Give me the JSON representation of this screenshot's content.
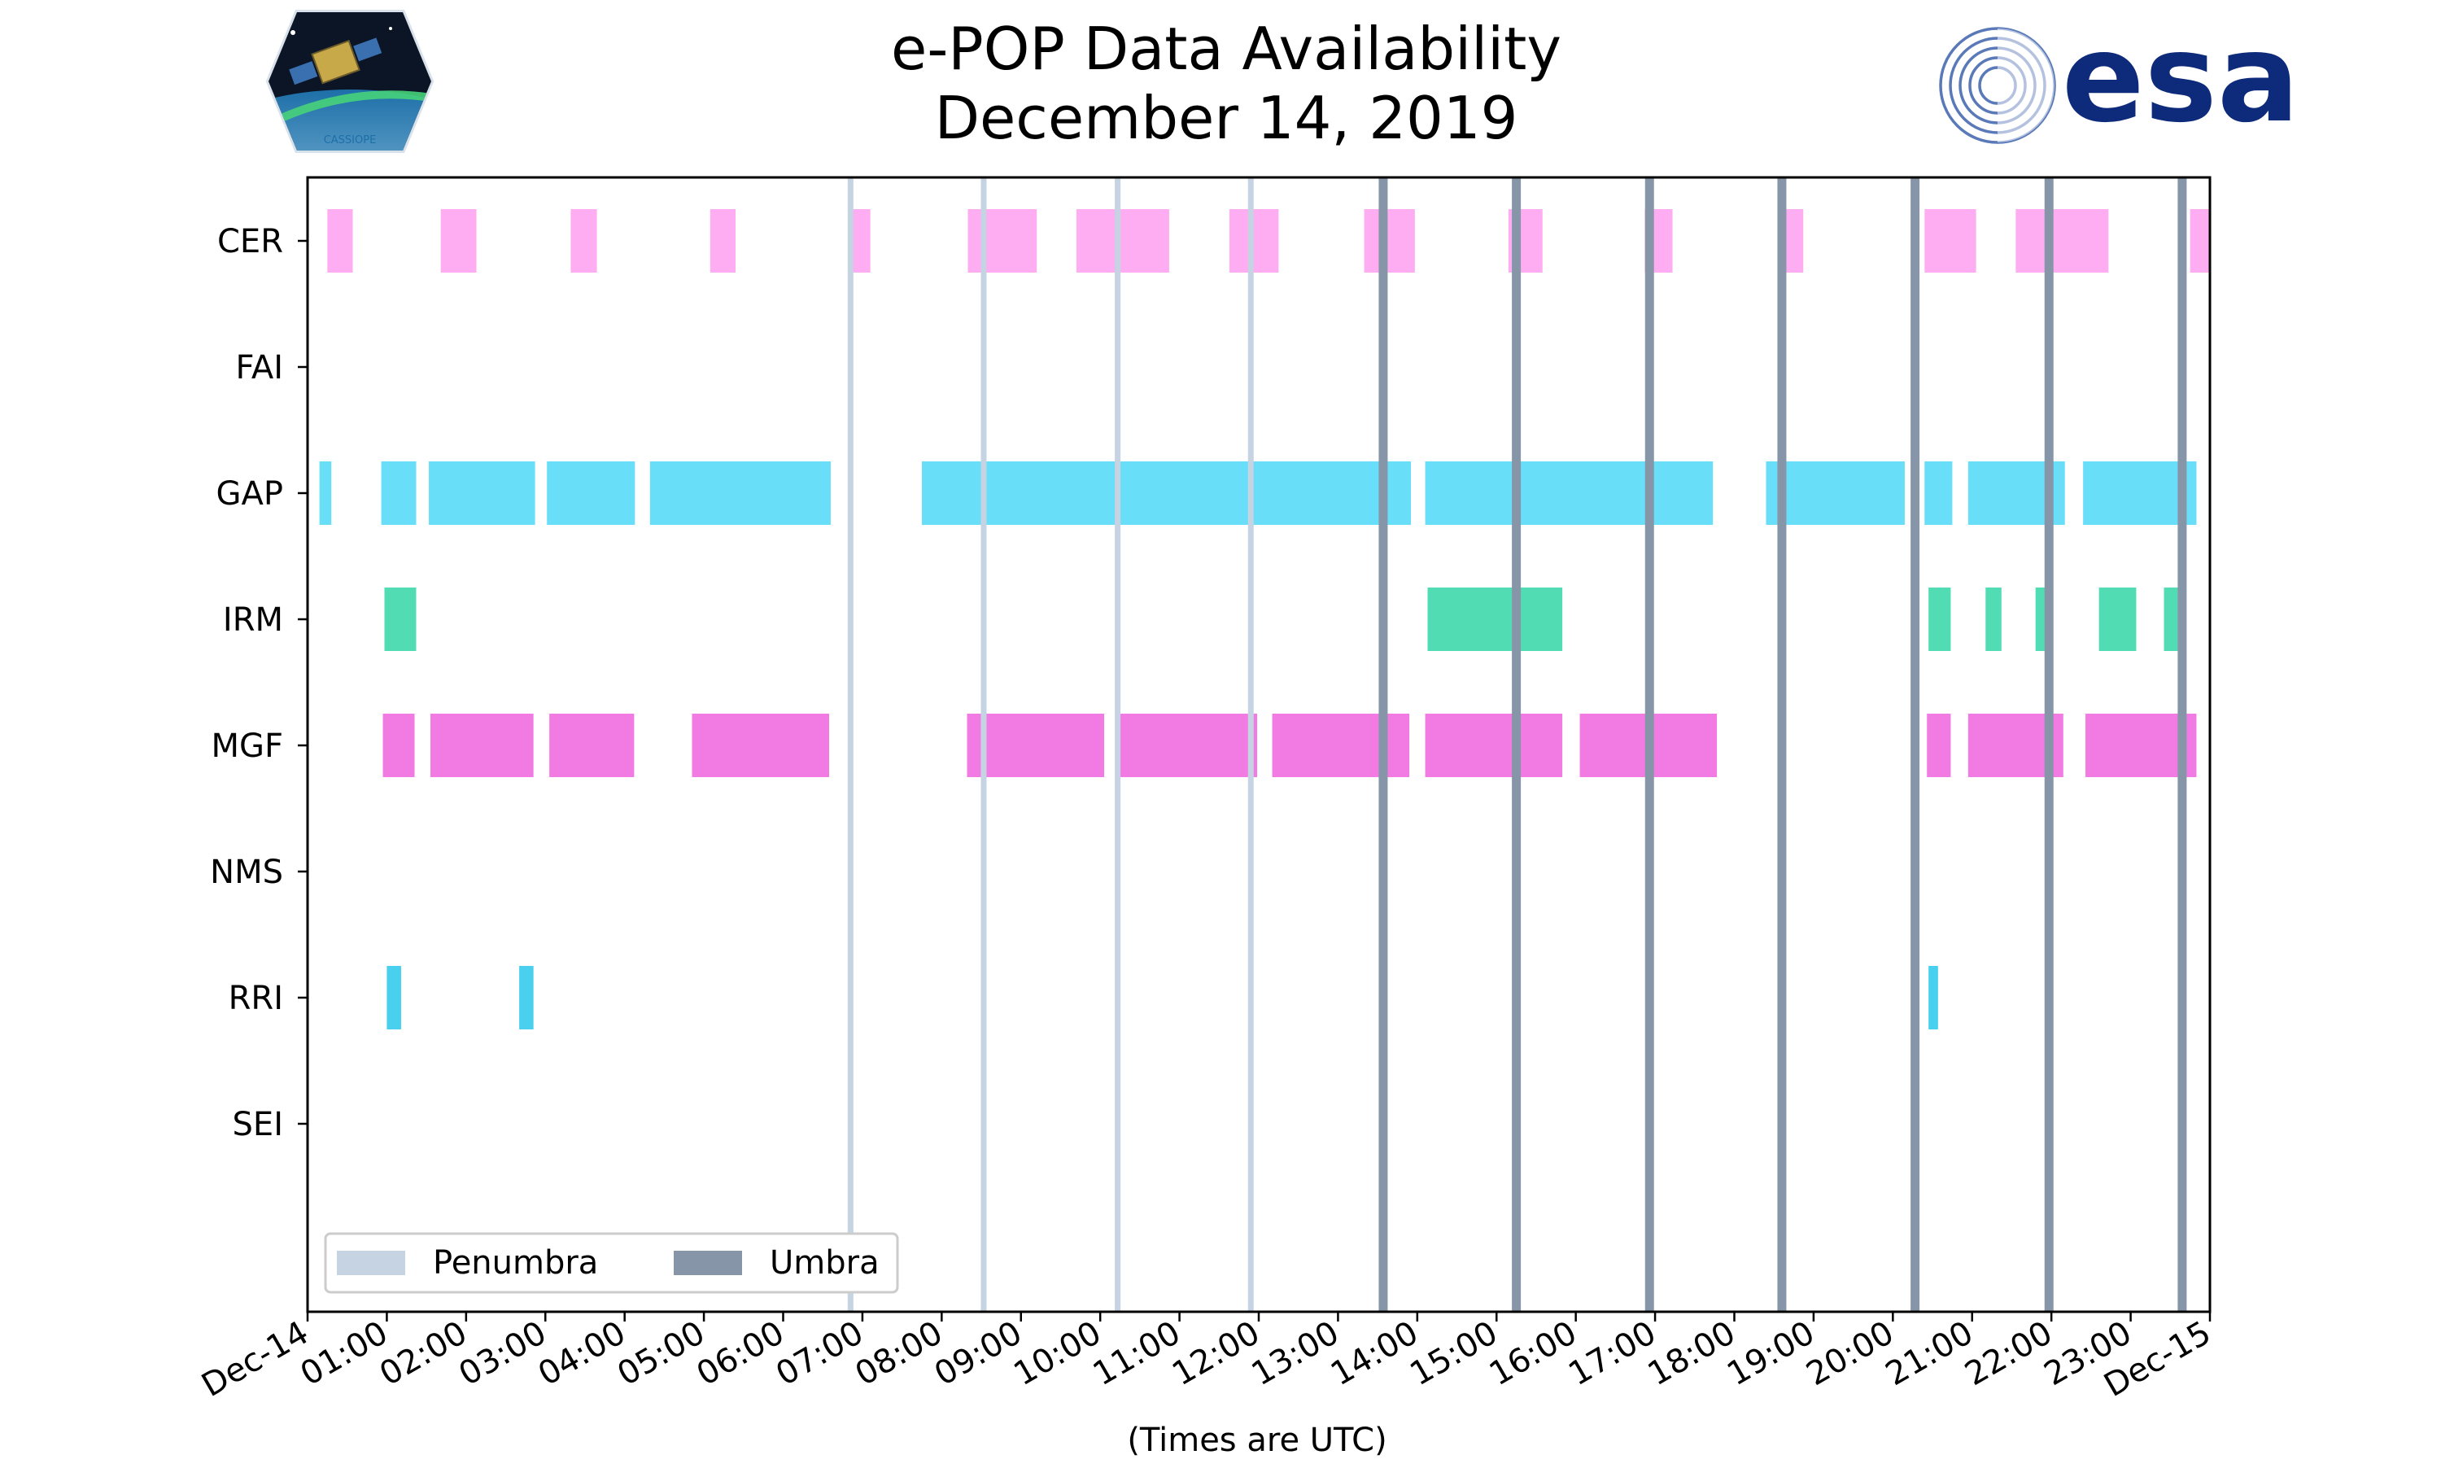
{
  "chart_data": {
    "type": "timeline",
    "title": "e-POP Data Availability",
    "subtitle": "December 14, 2019",
    "xlabel": "(Times are UTC)",
    "x_unit": "hours",
    "xlim": [
      0,
      24
    ],
    "x_ticks": [
      {
        "value": 0,
        "label": "Dec-14"
      },
      {
        "value": 1,
        "label": "01:00"
      },
      {
        "value": 2,
        "label": "02:00"
      },
      {
        "value": 3,
        "label": "03:00"
      },
      {
        "value": 4,
        "label": "04:00"
      },
      {
        "value": 5,
        "label": "05:00"
      },
      {
        "value": 6,
        "label": "06:00"
      },
      {
        "value": 7,
        "label": "07:00"
      },
      {
        "value": 8,
        "label": "08:00"
      },
      {
        "value": 9,
        "label": "09:00"
      },
      {
        "value": 10,
        "label": "10:00"
      },
      {
        "value": 11,
        "label": "11:00"
      },
      {
        "value": 12,
        "label": "12:00"
      },
      {
        "value": 13,
        "label": "13:00"
      },
      {
        "value": 14,
        "label": "14:00"
      },
      {
        "value": 15,
        "label": "15:00"
      },
      {
        "value": 16,
        "label": "16:00"
      },
      {
        "value": 17,
        "label": "17:00"
      },
      {
        "value": 18,
        "label": "18:00"
      },
      {
        "value": 19,
        "label": "19:00"
      },
      {
        "value": 20,
        "label": "20:00"
      },
      {
        "value": 21,
        "label": "21:00"
      },
      {
        "value": 22,
        "label": "22:00"
      },
      {
        "value": 23,
        "label": "23:00"
      },
      {
        "value": 24,
        "label": "Dec-15"
      }
    ],
    "instruments": [
      {
        "name": "CER",
        "color": "#ff9ff0",
        "segments": [
          [
            0.25,
            0.57
          ],
          [
            1.68,
            2.13
          ],
          [
            3.32,
            3.65
          ],
          [
            5.08,
            5.4
          ],
          [
            6.85,
            7.1
          ],
          [
            8.33,
            9.2
          ],
          [
            9.7,
            10.87
          ],
          [
            11.63,
            12.25
          ],
          [
            13.33,
            13.97
          ],
          [
            15.15,
            15.58
          ],
          [
            16.87,
            17.22
          ],
          [
            18.65,
            18.87
          ],
          [
            20.4,
            21.05
          ],
          [
            21.55,
            22.72
          ],
          [
            23.75,
            24.0
          ]
        ]
      },
      {
        "name": "FAI",
        "color": "#999999",
        "segments": []
      },
      {
        "name": "GAP",
        "color": "#4ed8f8",
        "segments": [
          [
            0.15,
            0.3
          ],
          [
            0.93,
            1.37
          ],
          [
            1.53,
            2.87
          ],
          [
            3.02,
            4.13
          ],
          [
            4.32,
            6.6
          ],
          [
            7.75,
            13.92
          ],
          [
            14.1,
            17.73
          ],
          [
            18.4,
            20.15
          ],
          [
            20.4,
            20.75
          ],
          [
            20.95,
            22.17
          ],
          [
            22.4,
            23.83
          ]
        ]
      },
      {
        "name": "IRM",
        "color": "#33d6a6",
        "segments": [
          [
            0.97,
            1.37
          ],
          [
            14.13,
            15.83
          ],
          [
            20.45,
            20.73
          ],
          [
            21.17,
            21.37
          ],
          [
            21.8,
            22.0
          ],
          [
            22.6,
            23.07
          ],
          [
            23.42,
            23.6
          ]
        ]
      },
      {
        "name": "MGF",
        "color": "#f063de",
        "segments": [
          [
            0.95,
            1.35
          ],
          [
            1.55,
            2.85
          ],
          [
            3.05,
            4.12
          ],
          [
            4.85,
            6.58
          ],
          [
            8.32,
            10.05
          ],
          [
            10.23,
            11.98
          ],
          [
            12.17,
            13.9
          ],
          [
            14.1,
            15.83
          ],
          [
            16.05,
            17.78
          ],
          [
            20.43,
            20.73
          ],
          [
            20.95,
            22.15
          ],
          [
            22.43,
            23.83
          ]
        ]
      },
      {
        "name": "NMS",
        "color": "#999999",
        "segments": []
      },
      {
        "name": "RRI",
        "color": "#29c8ec",
        "segments": [
          [
            1.0,
            1.18
          ],
          [
            2.67,
            2.85
          ],
          [
            20.45,
            20.57
          ]
        ]
      },
      {
        "name": "SEI",
        "color": "#999999",
        "segments": []
      }
    ],
    "penumbra": {
      "color": "#c5d3e3",
      "times": [
        6.85,
        8.53,
        10.22,
        11.9,
        13.57,
        15.25,
        16.93,
        18.6,
        20.28,
        21.97,
        23.65
      ]
    },
    "umbra": {
      "color": "#8696a8",
      "times": [
        13.57,
        15.25,
        16.93,
        18.6,
        20.28,
        21.97,
        23.65
      ]
    },
    "legend": {
      "position": "bottom-left",
      "entries": [
        {
          "label": "Penumbra",
          "color": "#c5d3e3"
        },
        {
          "label": "Umbra",
          "color": "#8696a8"
        }
      ]
    }
  },
  "logos": {
    "left": {
      "name": "cassiope-logo",
      "text": "CASSIOPE"
    },
    "right": {
      "name": "esa-logo",
      "text": "esa"
    }
  }
}
